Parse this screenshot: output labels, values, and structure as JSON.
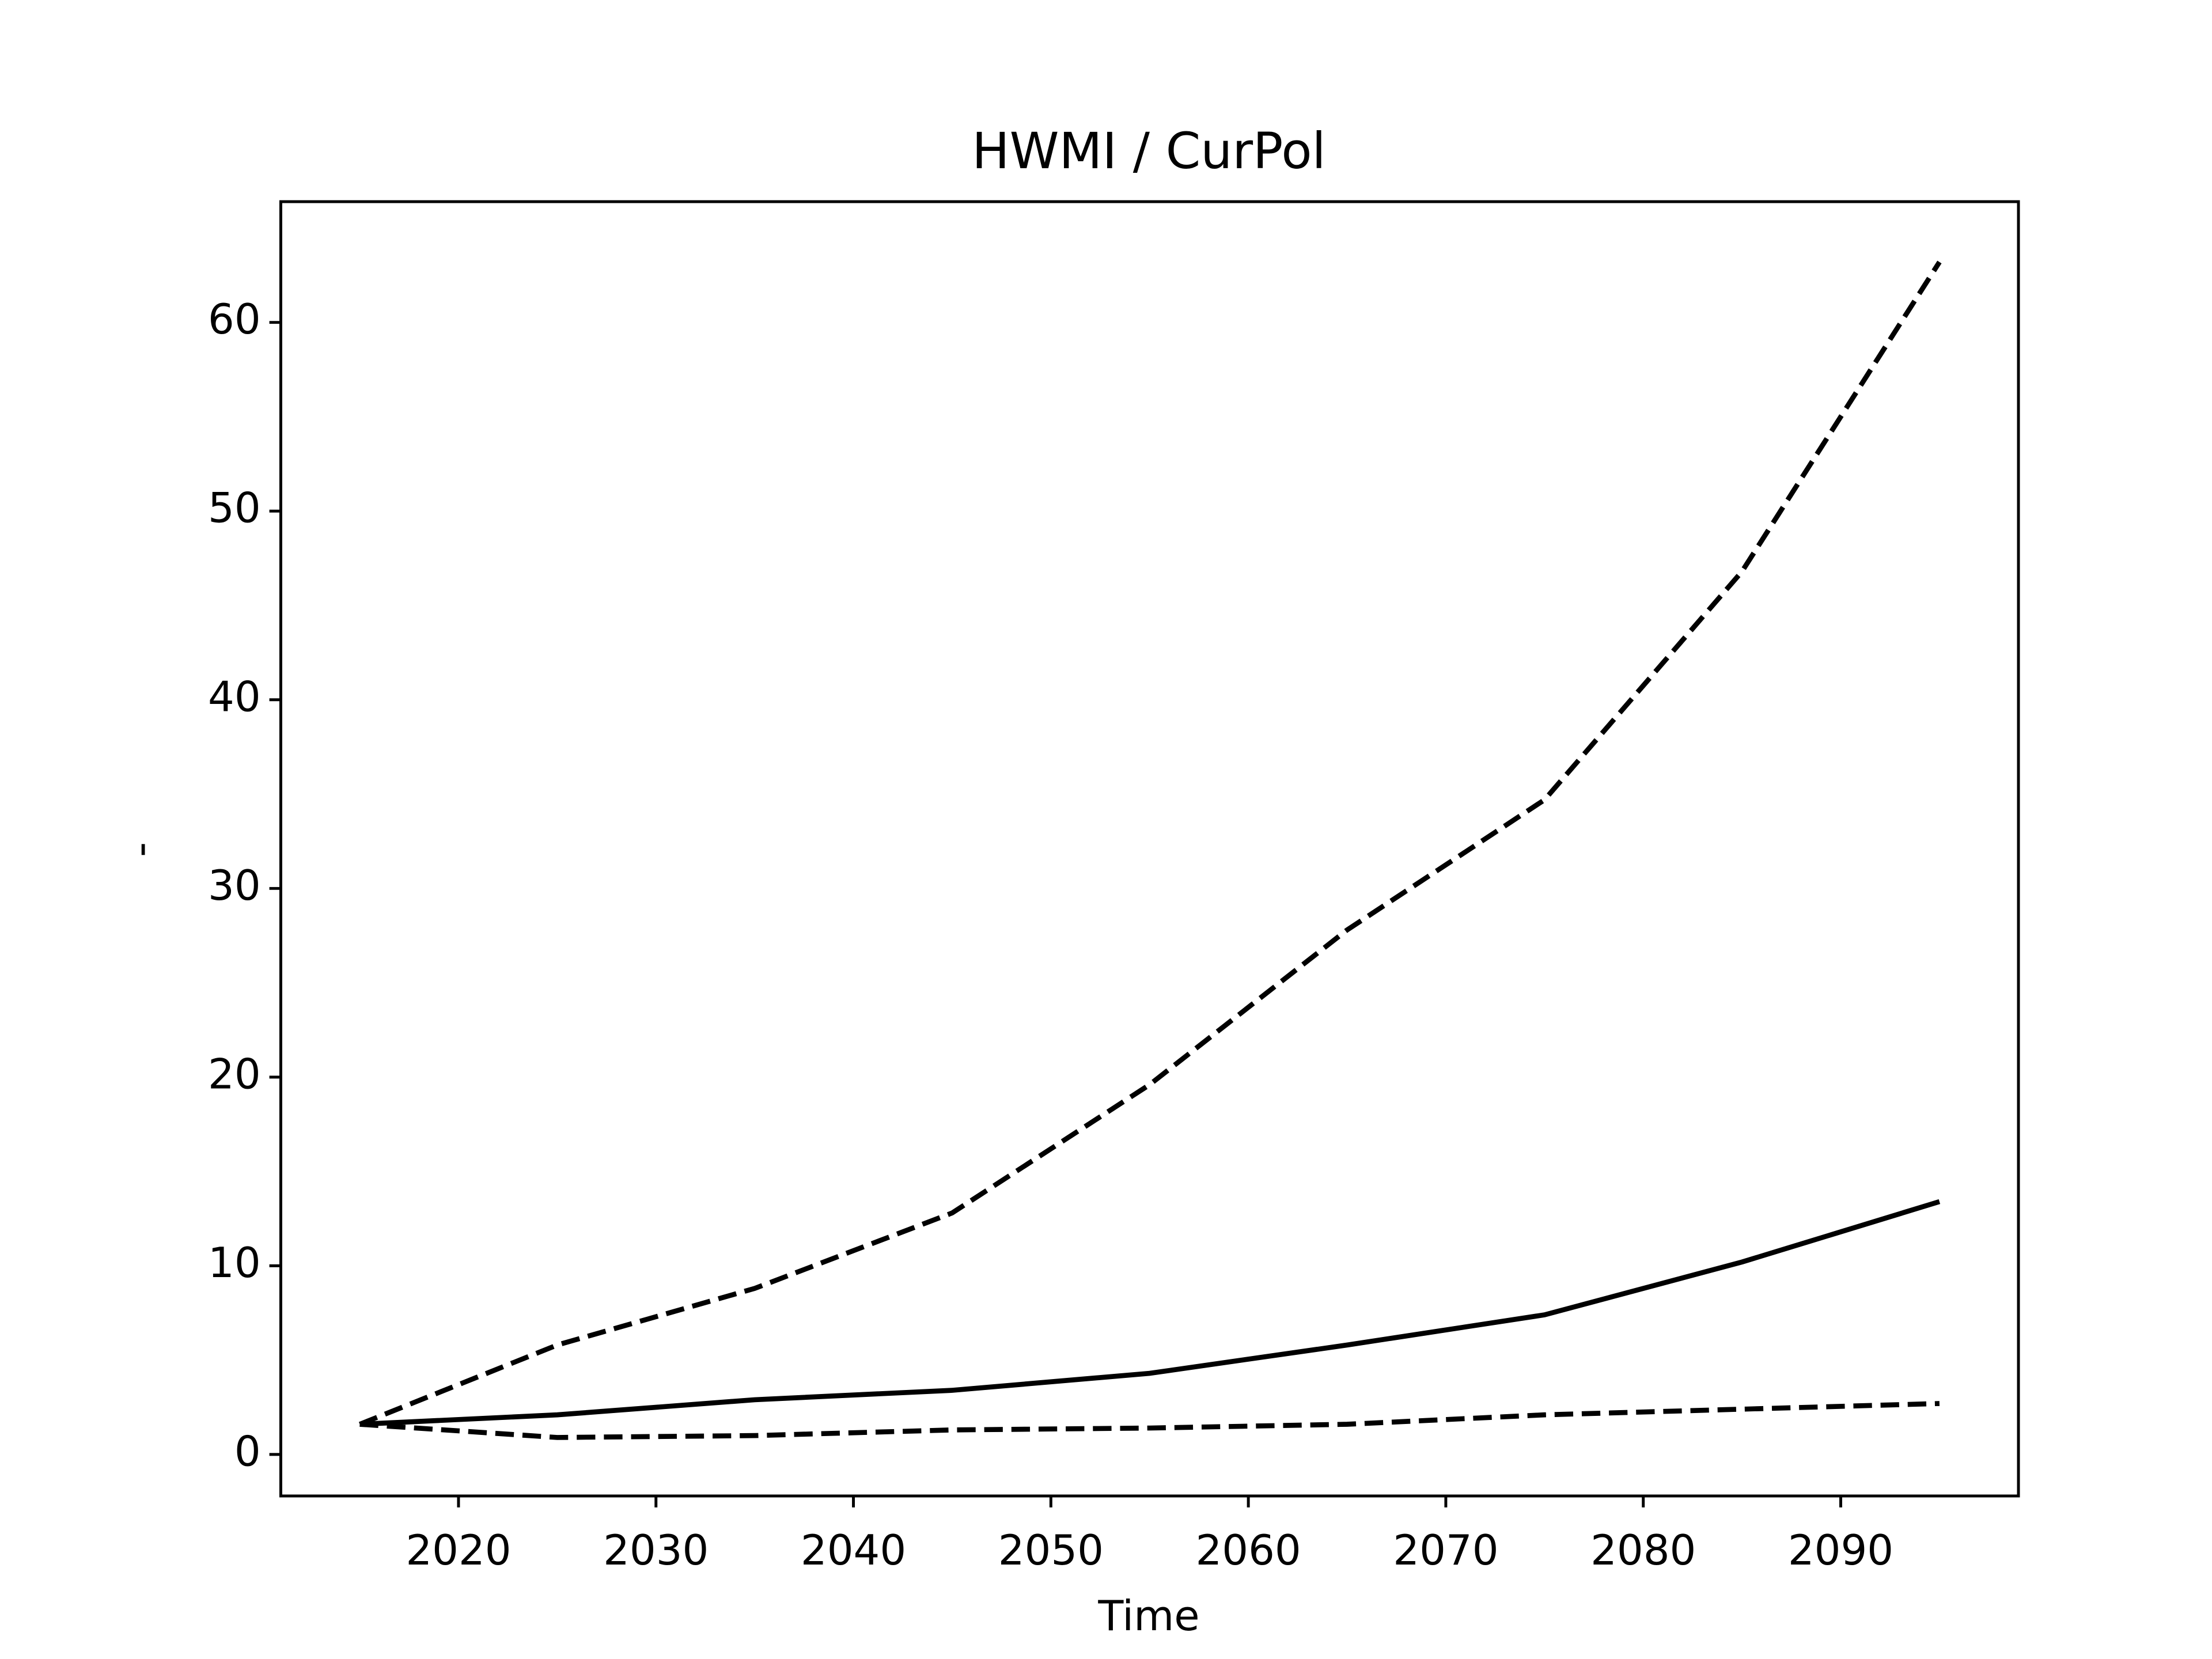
{
  "chart_data": {
    "type": "line",
    "title": "HWMI / CurPol",
    "x_label": "Time",
    "y_label": "-",
    "x": [
      2015,
      2025,
      2035,
      2045,
      2055,
      2065,
      2075,
      2085,
      2095
    ],
    "series": [
      {
        "color": "#000000",
        "style": "solid",
        "values": [
          1.6,
          2.1,
          2.9,
          3.4,
          4.3,
          5.8,
          7.4,
          10.2,
          13.4
        ]
      },
      {
        "color": "#000000",
        "style": "dashed",
        "values": [
          1.6,
          5.8,
          8.8,
          12.8,
          19.6,
          27.8,
          34.7,
          46.8,
          63.2
        ]
      },
      {
        "color": "#000000",
        "style": "dashed",
        "values": [
          1.6,
          0.9,
          1.0,
          1.3,
          1.4,
          1.6,
          2.1,
          2.4,
          2.7
        ]
      }
    ],
    "xlim": [
      2011,
      2099
    ],
    "xticks": [
      2020,
      2030,
      2040,
      2050,
      2060,
      2070,
      2080,
      2090
    ],
    "ylim": [
      -2.2,
      66.4
    ],
    "yticks": [
      0,
      10,
      20,
      30,
      40,
      50,
      60
    ],
    "grid": false
  }
}
